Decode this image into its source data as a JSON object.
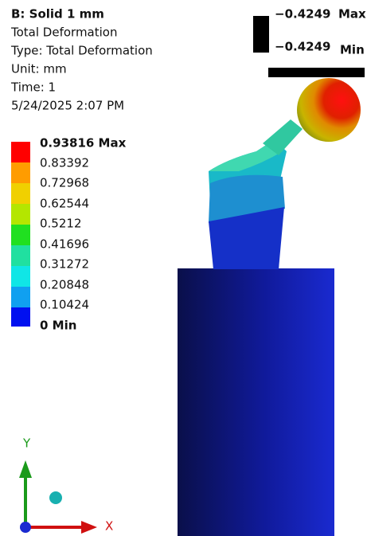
{
  "header": {
    "title": "B: Solid 1 mm",
    "lines": [
      "Total Deformation",
      "Type: Total Deformation",
      "Unit: mm",
      "Time: 1",
      "5/24/2025 2:07 PM"
    ]
  },
  "legend": {
    "entries": [
      "0.93816 Max",
      "0.83392",
      "0.72968",
      "0.62544",
      "0.5212",
      "0.41696",
      "0.31272",
      "0.20848",
      "0.10424",
      "0 Min"
    ]
  },
  "probe": {
    "max_value": "−0.4249",
    "max_label": "Max",
    "min_value": "−0.4249",
    "min_label": "Min"
  },
  "triad": {
    "y_label": "Y",
    "x_label": "X"
  }
}
